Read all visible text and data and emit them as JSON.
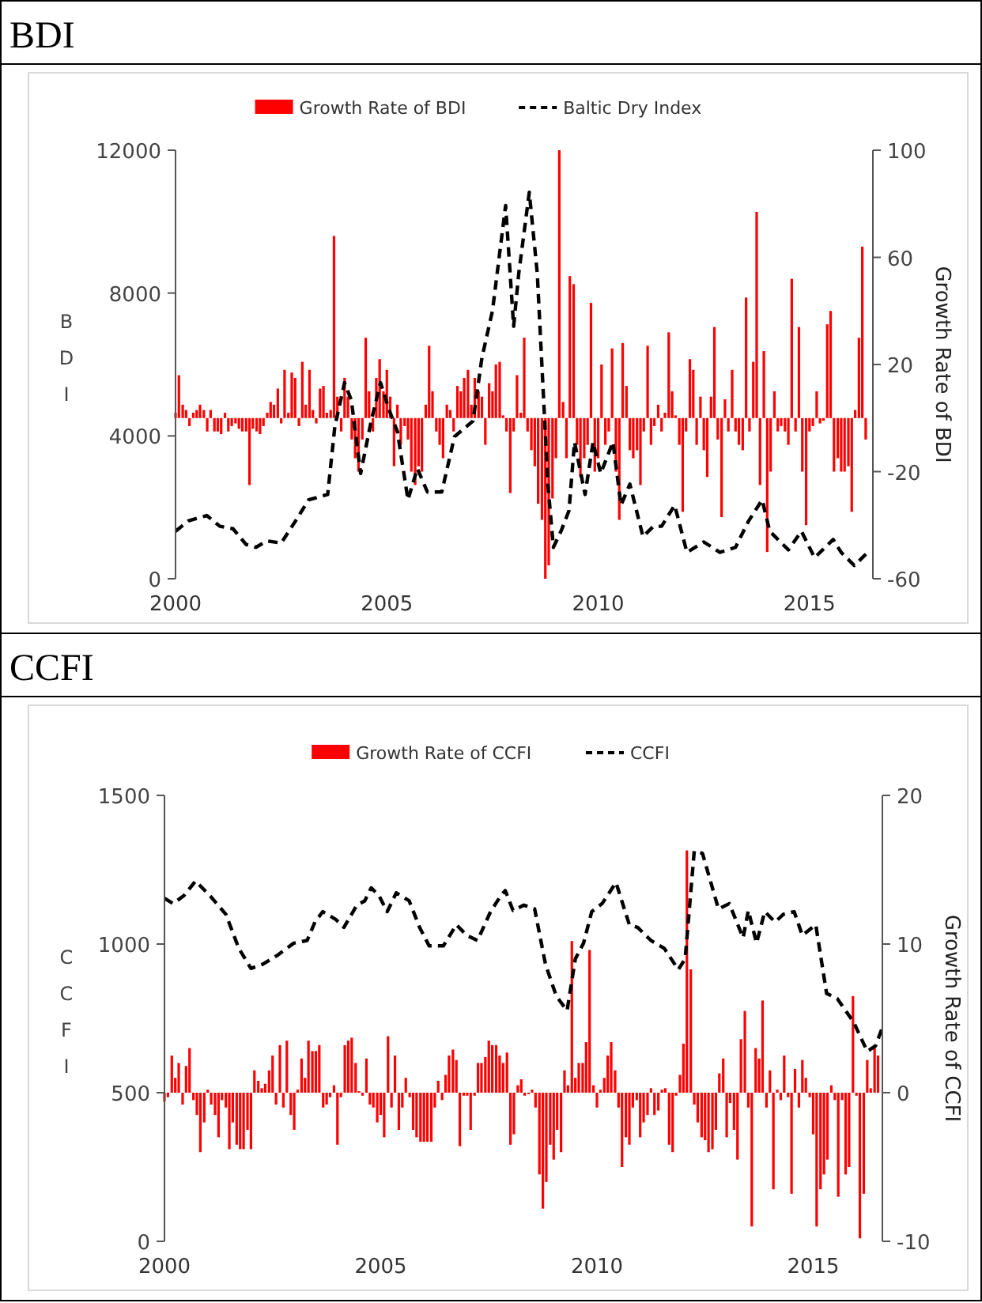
{
  "chart_data": [
    {
      "type": "bar",
      "title": "BDI",
      "ylabel": "BDI",
      "y2label": "Growth Rate of BDI",
      "legend": "top",
      "xlim": [
        2000,
        2016.5
      ],
      "xticks": [
        2000,
        2005,
        2010,
        2015
      ],
      "ylim": [
        0,
        12000
      ],
      "yticks": [
        0,
        4000,
        8000,
        12000
      ],
      "y2lim": [
        -60,
        100
      ],
      "y2ticks": [
        -60,
        -20,
        20,
        60,
        100
      ],
      "series": [
        {
          "name": "Growth Rate of BDI",
          "axis": "y2",
          "color": "#ff0000",
          "x": [
            2000,
            2000.08,
            2000.17,
            2000.25,
            2000.33,
            2000.42,
            2000.5,
            2000.58,
            2000.67,
            2000.75,
            2000.83,
            2000.92,
            2001,
            2001.08,
            2001.17,
            2001.25,
            2001.33,
            2001.42,
            2001.5,
            2001.58,
            2001.67,
            2001.75,
            2001.83,
            2001.92,
            2002,
            2002.08,
            2002.17,
            2002.25,
            2002.33,
            2002.42,
            2002.5,
            2002.58,
            2002.67,
            2002.75,
            2002.83,
            2002.92,
            2003,
            2003.08,
            2003.17,
            2003.25,
            2003.33,
            2003.42,
            2003.5,
            2003.58,
            2003.67,
            2003.75,
            2003.83,
            2003.92,
            2004,
            2004.08,
            2004.17,
            2004.25,
            2004.33,
            2004.42,
            2004.5,
            2004.58,
            2004.67,
            2004.75,
            2004.83,
            2004.92,
            2005,
            2005.08,
            2005.17,
            2005.25,
            2005.33,
            2005.42,
            2005.5,
            2005.58,
            2005.67,
            2005.75,
            2005.83,
            2005.92,
            2006,
            2006.08,
            2006.17,
            2006.25,
            2006.33,
            2006.42,
            2006.5,
            2006.58,
            2006.67,
            2006.75,
            2006.83,
            2006.92,
            2007,
            2007.08,
            2007.17,
            2007.25,
            2007.33,
            2007.42,
            2007.5,
            2007.58,
            2007.67,
            2007.75,
            2007.83,
            2007.92,
            2008,
            2008.08,
            2008.17,
            2008.25,
            2008.33,
            2008.42,
            2008.5,
            2008.58,
            2008.67,
            2008.75,
            2008.83,
            2008.92,
            2009,
            2009.08,
            2009.17,
            2009.25,
            2009.33,
            2009.42,
            2009.5,
            2009.58,
            2009.67,
            2009.75,
            2009.83,
            2009.92,
            2010,
            2010.08,
            2010.17,
            2010.25,
            2010.33,
            2010.42,
            2010.5,
            2010.58,
            2010.67,
            2010.75,
            2010.83,
            2010.92,
            2011,
            2011.08,
            2011.17,
            2011.25,
            2011.33,
            2011.42,
            2011.5,
            2011.58,
            2011.67,
            2011.75,
            2011.83,
            2011.92,
            2012,
            2012.08,
            2012.17,
            2012.25,
            2012.33,
            2012.42,
            2012.5,
            2012.58,
            2012.67,
            2012.75,
            2012.83,
            2012.92,
            2013,
            2013.08,
            2013.17,
            2013.25,
            2013.33,
            2013.42,
            2013.5,
            2013.58,
            2013.67,
            2013.75,
            2013.83,
            2013.92,
            2014,
            2014.08,
            2014.17,
            2014.25,
            2014.33,
            2014.42,
            2014.5,
            2014.58,
            2014.67,
            2014.75,
            2014.83,
            2014.92,
            2015,
            2015.08,
            2015.17,
            2015.25,
            2015.33,
            2015.42,
            2015.5,
            2015.58,
            2015.67,
            2015.75,
            2015.83,
            2015.92,
            2016,
            2016.08,
            2016.17,
            2016.25,
            2016.33
          ],
          "values": [
            2,
            16,
            5,
            3,
            -3,
            2,
            3,
            5,
            3,
            -5,
            3,
            -5,
            -5,
            -6,
            2,
            -5,
            -3,
            -2,
            -4,
            -5,
            -5,
            -25,
            -4,
            -5,
            -6,
            -3,
            2,
            6,
            5,
            11,
            -2,
            18,
            2,
            17,
            15,
            -3,
            21,
            5,
            18,
            3,
            -2,
            11,
            12,
            2,
            3,
            68,
            8,
            -5,
            15,
            8,
            -8,
            -15,
            -20,
            -8,
            30,
            10,
            -5,
            15,
            22,
            10,
            18,
            8,
            -18,
            5,
            -10,
            -3,
            -8,
            -20,
            -25,
            -18,
            -20,
            5,
            27,
            10,
            -5,
            -10,
            -15,
            5,
            3,
            -5,
            12,
            10,
            15,
            18,
            5,
            15,
            10,
            8,
            -10,
            13,
            10,
            20,
            21,
            1,
            -5,
            -28,
            -5,
            16,
            2,
            30,
            -5,
            -12,
            -18,
            -32,
            -38,
            -60,
            -55,
            -30,
            -15,
            100,
            6,
            -15,
            53,
            50,
            -10,
            -22,
            -15,
            -10,
            43,
            -20,
            -15,
            20,
            -10,
            -5,
            26,
            -20,
            -38,
            28,
            12,
            -12,
            -15,
            -12,
            -25,
            -5,
            27,
            -10,
            -3,
            5,
            -5,
            2,
            32,
            10,
            1,
            -10,
            -35,
            -5,
            22,
            18,
            -10,
            8,
            -12,
            -22,
            8,
            34,
            -8,
            -37,
            7,
            -5,
            18,
            -5,
            -10,
            -12,
            45,
            -5,
            21,
            77,
            -25,
            25,
            -50,
            -20,
            10,
            -5,
            -3,
            -5,
            -10,
            52,
            -5,
            34,
            -20,
            -40,
            -5,
            -3,
            10,
            -2,
            -1,
            35,
            40,
            -20,
            -15,
            -20,
            -20,
            -18,
            -35,
            3,
            30,
            64,
            -8
          ]
        },
        {
          "name": "Baltic Dry Index",
          "type": "line",
          "axis": "y",
          "color": "#000000",
          "line_style": "dashed",
          "x": [
            2000,
            2000.3,
            2000.74,
            2001.05,
            2001.36,
            2001.67,
            2001.9,
            2002.16,
            2002.5,
            2002.84,
            2003.15,
            2003.6,
            2003.77,
            2004,
            2004.16,
            2004.38,
            2004.63,
            2004.85,
            2005.06,
            2005.25,
            2005.5,
            2005.72,
            2005.96,
            2006.3,
            2006.6,
            2007.04,
            2007.25,
            2007.5,
            2007.81,
            2008,
            2008.12,
            2008.37,
            2008.56,
            2008.81,
            2008.94,
            2009.12,
            2009.31,
            2009.44,
            2009.69,
            2009.88,
            2010.06,
            2010.35,
            2010.54,
            2010.75,
            2011.06,
            2011.31,
            2011.5,
            2011.81,
            2012.1,
            2012.5,
            2012.88,
            2013.25,
            2013.56,
            2013.88,
            2014.06,
            2014.5,
            2014.81,
            2015.12,
            2015.56,
            2015.75,
            2016.06,
            2016.31,
            2016.4
          ],
          "values": [
            1330,
            1620,
            1770,
            1470,
            1400,
            960,
            880,
            1060,
            1000,
            1620,
            2210,
            2360,
            4270,
            5490,
            5000,
            2950,
            4420,
            5490,
            4710,
            4120,
            2210,
            3090,
            2430,
            2430,
            3980,
            4420,
            6190,
            7510,
            10450,
            7070,
            8540,
            10820,
            8540,
            2650,
            880,
            1330,
            1910,
            3830,
            2360,
            3830,
            2950,
            3830,
            2060,
            2650,
            1180,
            1470,
            1470,
            2060,
            740,
            1030,
            740,
            880,
            1620,
            2210,
            1330,
            810,
            1330,
            590,
            1100,
            740,
            370,
            660,
            740
          ]
        }
      ]
    },
    {
      "type": "bar",
      "title": "CCFI",
      "ylabel": "CCFI",
      "y2label": "Growth Rate of CCFI",
      "legend": "top",
      "xlim": [
        2000,
        2016.6
      ],
      "xticks": [
        2000,
        2005,
        2010,
        2015
      ],
      "ylim": [
        0,
        1500
      ],
      "yticks": [
        0,
        500,
        1000,
        1500
      ],
      "y2lim": [
        -10,
        20
      ],
      "y2ticks": [
        -10,
        0,
        10,
        20
      ],
      "series": [
        {
          "name": "Growth Rate of CCFI",
          "axis": "y2",
          "color": "#ff0000",
          "x": [
            2000,
            2000.08,
            2000.17,
            2000.25,
            2000.33,
            2000.42,
            2000.5,
            2000.58,
            2000.67,
            2000.75,
            2000.83,
            2000.92,
            2001,
            2001.08,
            2001.17,
            2001.25,
            2001.33,
            2001.42,
            2001.5,
            2001.58,
            2001.67,
            2001.75,
            2001.83,
            2001.92,
            2002,
            2002.08,
            2002.17,
            2002.25,
            2002.33,
            2002.42,
            2002.5,
            2002.58,
            2002.67,
            2002.75,
            2002.83,
            2002.92,
            2003,
            2003.08,
            2003.17,
            2003.25,
            2003.33,
            2003.42,
            2003.5,
            2003.58,
            2003.67,
            2003.75,
            2003.83,
            2003.92,
            2004,
            2004.08,
            2004.17,
            2004.25,
            2004.33,
            2004.42,
            2004.5,
            2004.58,
            2004.67,
            2004.75,
            2004.83,
            2004.92,
            2005,
            2005.08,
            2005.17,
            2005.25,
            2005.33,
            2005.42,
            2005.5,
            2005.58,
            2005.67,
            2005.75,
            2005.83,
            2005.92,
            2006,
            2006.08,
            2006.17,
            2006.25,
            2006.33,
            2006.42,
            2006.5,
            2006.58,
            2006.67,
            2006.75,
            2006.83,
            2006.92,
            2007,
            2007.08,
            2007.17,
            2007.25,
            2007.33,
            2007.42,
            2007.5,
            2007.58,
            2007.67,
            2007.75,
            2007.83,
            2007.92,
            2008,
            2008.08,
            2008.17,
            2008.25,
            2008.33,
            2008.42,
            2008.5,
            2008.58,
            2008.67,
            2008.75,
            2008.83,
            2008.92,
            2009,
            2009.08,
            2009.17,
            2009.25,
            2009.33,
            2009.42,
            2009.5,
            2009.58,
            2009.67,
            2009.75,
            2009.83,
            2009.92,
            2010,
            2010.08,
            2010.17,
            2010.25,
            2010.33,
            2010.42,
            2010.5,
            2010.58,
            2010.67,
            2010.75,
            2010.83,
            2010.92,
            2011,
            2011.08,
            2011.17,
            2011.25,
            2011.33,
            2011.42,
            2011.5,
            2011.58,
            2011.67,
            2011.75,
            2011.83,
            2011.92,
            2012,
            2012.08,
            2012.17,
            2012.25,
            2012.33,
            2012.42,
            2012.5,
            2012.58,
            2012.67,
            2012.75,
            2012.83,
            2012.92,
            2013,
            2013.08,
            2013.17,
            2013.25,
            2013.33,
            2013.42,
            2013.5,
            2013.58,
            2013.67,
            2013.75,
            2013.83,
            2013.92,
            2014,
            2014.08,
            2014.17,
            2014.25,
            2014.33,
            2014.42,
            2014.5,
            2014.58,
            2014.67,
            2014.75,
            2014.83,
            2014.92,
            2015,
            2015.08,
            2015.17,
            2015.25,
            2015.33,
            2015.42,
            2015.5,
            2015.58,
            2015.67,
            2015.75,
            2015.83,
            2015.92,
            2016,
            2016.08,
            2016.17,
            2016.25,
            2016.33,
            2016.42,
            2016.5
          ],
          "values": [
            -0.6,
            -0.3,
            2.5,
            1,
            2,
            -0.8,
            1.8,
            3,
            -0.5,
            -1.5,
            -4,
            -2,
            0.2,
            -0.8,
            -1.5,
            -3,
            -0.5,
            -1,
            -3.8,
            -2,
            -3.5,
            -3.8,
            -3.8,
            -2.5,
            -3.8,
            1.5,
            0.8,
            0.3,
            0.6,
            1.5,
            2.5,
            -0.8,
            3.2,
            -1,
            3.5,
            -1.5,
            -2.5,
            0.2,
            2.3,
            1,
            3.5,
            2.8,
            2.8,
            3.2,
            -1,
            -0.8,
            -0.3,
            0.5,
            -3.5,
            -0.3,
            3.2,
            3.5,
            3.7,
            2,
            0.1,
            -0.2,
            2.3,
            -0.8,
            -1,
            -2,
            -1.5,
            -3,
            3.8,
            -1,
            2.5,
            -2.5,
            -1,
            1,
            -0.3,
            -2.5,
            -3,
            -3.3,
            -3.3,
            -3.3,
            -3.3,
            -1,
            0.8,
            -0.5,
            1.2,
            2.5,
            2.9,
            2.2,
            -3.6,
            -0.2,
            -0.2,
            -2.5,
            -0.2,
            2,
            2,
            2.4,
            3.5,
            3.2,
            3.2,
            2.5,
            2,
            2.7,
            -3.5,
            -2.8,
            0.5,
            0.9,
            -0.2,
            -0.1,
            0.2,
            -1,
            -5.5,
            -7.8,
            -6,
            -3.5,
            -4.5,
            -2.5,
            -4,
            1.5,
            0.5,
            10.2,
            1,
            2,
            2,
            3.4,
            9.6,
            0.5,
            -1,
            0.2,
            1,
            2.5,
            3.4,
            1.5,
            -1,
            -5,
            -3,
            -3.5,
            -1,
            -0.5,
            -3,
            -2,
            -1.5,
            0.3,
            -1.5,
            -1.2,
            0.2,
            0.3,
            -3.5,
            -4,
            -0.2,
            1.2,
            3.3,
            16.3,
            8.3,
            -0.8,
            -2,
            -3,
            -3.2,
            -4,
            -3.8,
            -2.5,
            1.3,
            2.3,
            -3,
            -0.7,
            -2.5,
            -4.5,
            3.6,
            5.5,
            -1,
            -9,
            3,
            2.3,
            6.2,
            -1,
            1.5,
            -6.5,
            0.2,
            -0.5,
            2.5,
            -0.3,
            -6.8,
            1.6,
            -1,
            2.2,
            1,
            -0.3,
            -2.8,
            -9,
            -6.5,
            -5.5,
            -4.5,
            0.5,
            -0.5,
            -7,
            -0.5,
            -5.5,
            -5,
            6.5,
            -0.2,
            -9.8,
            -6.8,
            2.2,
            0.3,
            3.2,
            2.5
          ]
        },
        {
          "name": "CCFI",
          "type": "line",
          "axis": "y",
          "color": "#000000",
          "line_style": "dashed",
          "x": [
            2000,
            2000.2,
            2000.45,
            2000.72,
            2001.05,
            2001.42,
            2001.72,
            2002,
            2002.27,
            2002.63,
            2002.99,
            2003.3,
            2003.48,
            2003.66,
            2003.96,
            2004.15,
            2004.45,
            2004.63,
            2004.78,
            2004.96,
            2005.15,
            2005.36,
            2005.66,
            2005.9,
            2006.12,
            2006.45,
            2006.75,
            2006.99,
            2007.24,
            2007.54,
            2007.78,
            2007.88,
            2008.06,
            2008.31,
            2008.56,
            2008.81,
            2009.06,
            2009.31,
            2009.5,
            2009.69,
            2009.88,
            2010.12,
            2010.44,
            2010.75,
            2010.94,
            2011.25,
            2011.56,
            2011.88,
            2012.04,
            2012.25,
            2012.44,
            2012.81,
            2013.06,
            2013.38,
            2013.5,
            2013.69,
            2013.88,
            2014.12,
            2014.31,
            2014.56,
            2014.75,
            2015.06,
            2015.31,
            2015.56,
            2015.94,
            2016.25,
            2016.44,
            2016.6
          ],
          "values": [
            1154,
            1136,
            1163,
            1212,
            1163,
            1100,
            985,
            918,
            932,
            964,
            1003,
            1012,
            1074,
            1109,
            1083,
            1056,
            1131,
            1145,
            1189,
            1163,
            1109,
            1172,
            1145,
            1056,
            994,
            994,
            1065,
            1029,
            1012,
            1109,
            1163,
            1180,
            1113,
            1131,
            1118,
            932,
            825,
            776,
            950,
            1003,
            1109,
            1136,
            1207,
            1065,
            1056,
            1012,
            985,
            914,
            950,
            1313,
            1305,
            1118,
            1136,
            1021,
            1113,
            1003,
            1109,
            1074,
            1100,
            1109,
            1029,
            1065,
            834,
            816,
            736,
            639,
            657,
            719
          ]
        }
      ]
    }
  ]
}
